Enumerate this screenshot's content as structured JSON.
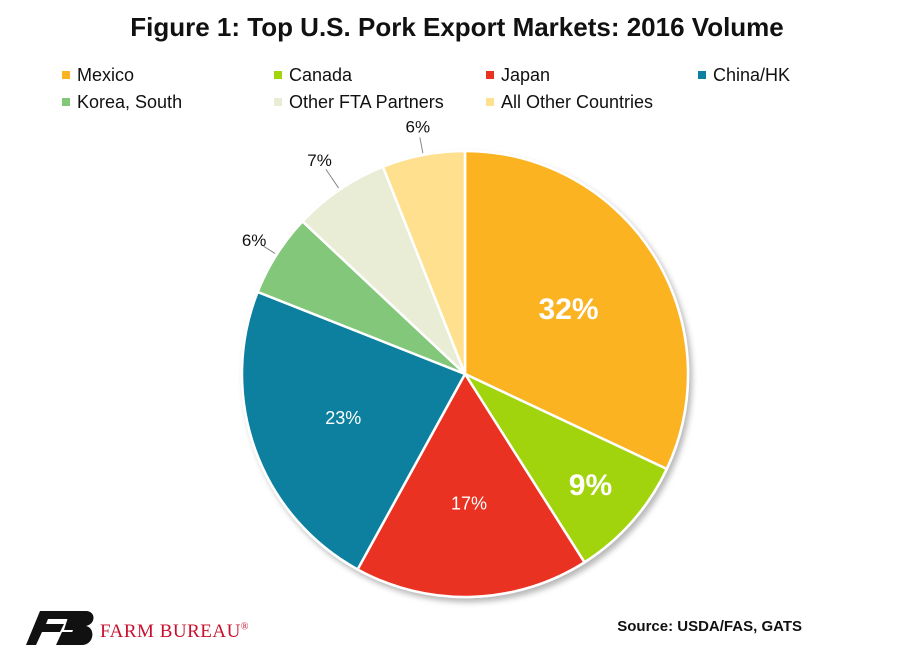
{
  "chart_data": {
    "type": "pie",
    "title": "Figure 1: Top U.S. Pork Export Markets: 2016 Volume",
    "categories": [
      "Mexico",
      "Canada",
      "Japan",
      "China/HK",
      "Korea, South",
      "Other FTA Partners",
      "All Other Countries"
    ],
    "values": [
      32,
      9,
      17,
      23,
      6,
      7,
      6
    ],
    "labels": [
      "32%",
      "9%",
      "17%",
      "23%",
      "6%",
      "7%",
      "6%"
    ],
    "colors": [
      "#FBB323",
      "#A2D40D",
      "#EA3223",
      "#0B809F",
      "#82C77A",
      "#E9EDD6",
      "#FFE08E"
    ],
    "legend_position": "top",
    "start_angle_deg": 0,
    "direction": "clockwise"
  },
  "footer": {
    "source": "Source: USDA/FAS, GATS",
    "logo_text": "FARM BUREAU",
    "logo_reg": "®"
  }
}
